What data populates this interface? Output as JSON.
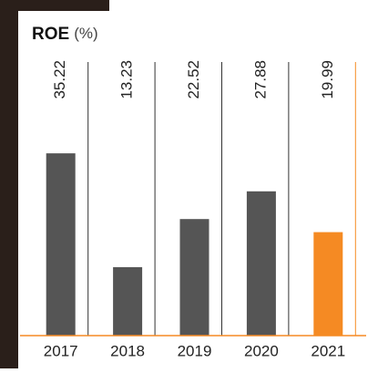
{
  "chart_data": {
    "type": "bar",
    "title": "ROE",
    "unit": "(%)",
    "categories": [
      "2017",
      "2018",
      "2019",
      "2020",
      "2021"
    ],
    "values": [
      35.22,
      13.23,
      22.52,
      27.88,
      19.99
    ],
    "colors": [
      "#555555",
      "#555555",
      "#555555",
      "#555555",
      "#f58a23"
    ],
    "baseline_color": "#f58a23",
    "ylim": [
      0,
      40
    ]
  }
}
